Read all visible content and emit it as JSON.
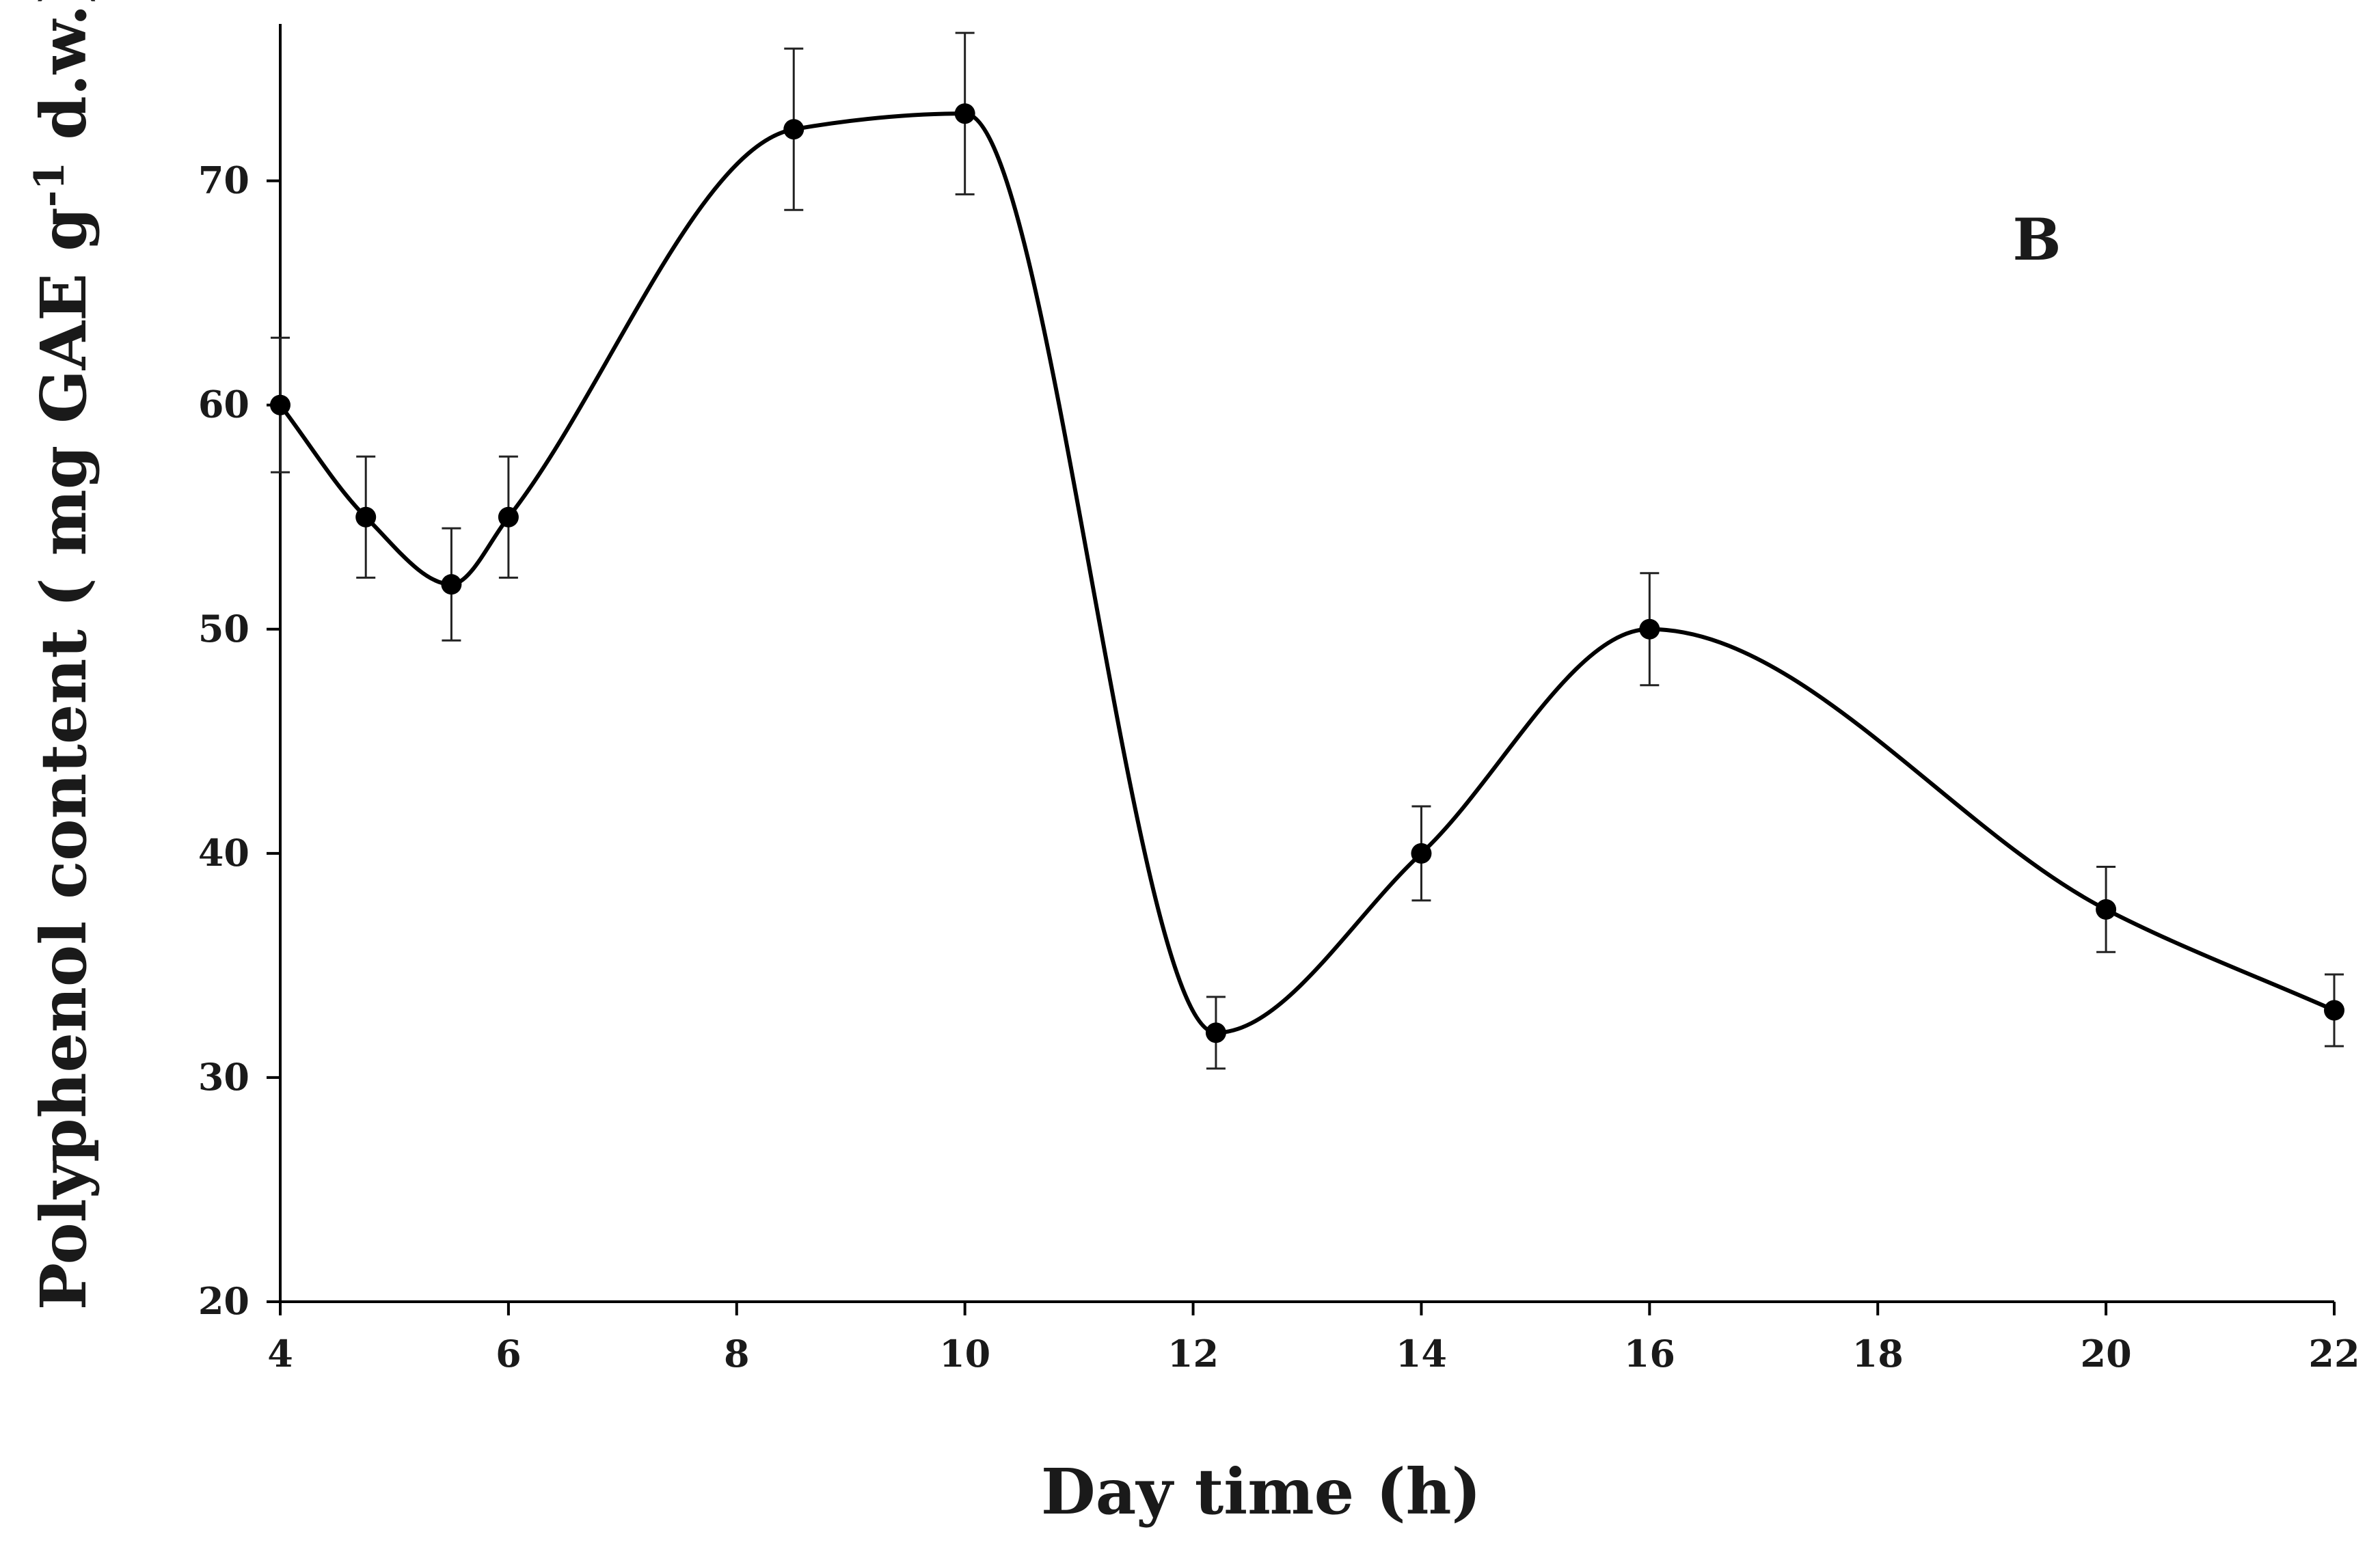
{
  "chart_data": {
    "type": "line",
    "title": "",
    "panel_label": "B",
    "xlabel": "Day time (h)",
    "ylabel": {
      "pre": "Polyphenol content ( mg GAE g",
      "sup": "-1",
      "post": " d.w.)"
    },
    "xlim": [
      4,
      22
    ],
    "ylim": [
      20,
      77
    ],
    "xticks": [
      4,
      6,
      8,
      10,
      12,
      14,
      16,
      18,
      20,
      22
    ],
    "yticks": [
      20,
      30,
      40,
      50,
      60,
      70
    ],
    "grid": false,
    "series": [
      {
        "name": "Polyphenol content",
        "color": "#000000",
        "smooth": true,
        "x": [
          4,
          4.75,
          5.5,
          6,
          8.5,
          10,
          12.2,
          14,
          16,
          20,
          22
        ],
        "y": [
          60,
          55,
          52,
          55,
          72.3,
          73,
          32,
          40,
          50,
          37.5,
          33
        ],
        "err": [
          3,
          2.7,
          2.5,
          2.7,
          3.6,
          3.6,
          1.6,
          2.1,
          2.5,
          1.9,
          1.6
        ]
      }
    ]
  }
}
